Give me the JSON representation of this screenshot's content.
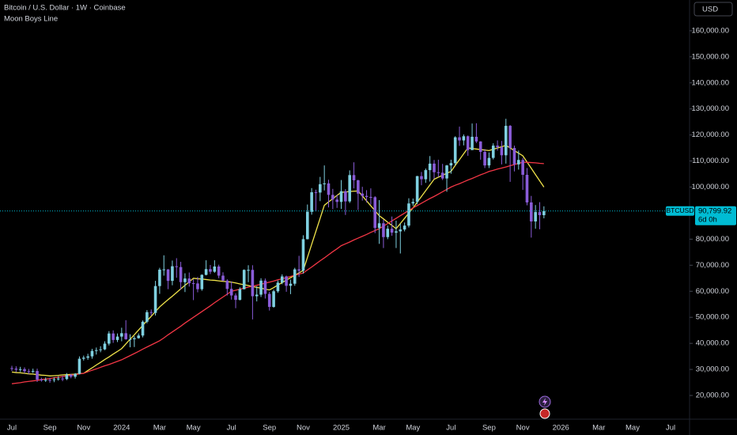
{
  "chart_data": {
    "type": "candlestick",
    "title": "Bitcoin / U.S. Dollar · 1W · Coinbase",
    "indicator": "Moon Boys Line",
    "currency": "USD",
    "categories": [
      "Jul",
      null,
      null,
      null,
      null,
      null,
      null,
      null,
      null,
      "Sep",
      null,
      null,
      null,
      null,
      null,
      null,
      null,
      "Nov",
      null,
      null,
      null,
      null,
      null,
      null,
      null,
      null,
      "2024",
      null,
      null,
      null,
      null,
      null,
      null,
      null,
      null,
      "Mar",
      null,
      null,
      null,
      null,
      null,
      null,
      null,
      "May",
      null,
      null,
      null,
      null,
      null,
      null,
      null,
      null,
      "Jul",
      null,
      null,
      null,
      null,
      null,
      null,
      null,
      null,
      "Sep",
      null,
      null,
      null,
      null,
      null,
      null,
      null,
      "Nov",
      null,
      null,
      null,
      null,
      null,
      null,
      null,
      null,
      "2025",
      null,
      null,
      null,
      null,
      null,
      null,
      null,
      null,
      "Mar",
      null,
      null,
      null,
      null,
      null,
      null,
      null,
      "May",
      null,
      null,
      null,
      null,
      null,
      null,
      null,
      null,
      "Jul",
      null,
      null,
      null,
      null,
      null,
      null,
      null,
      null,
      "Sep",
      null,
      null,
      null,
      null,
      null,
      null,
      null,
      "Nov",
      null,
      null,
      null,
      null,
      null,
      null,
      null,
      null,
      "2026",
      null,
      null,
      null,
      null,
      null,
      null,
      null,
      null,
      "Mar",
      null,
      null,
      null,
      null,
      null,
      null,
      null,
      "May",
      null,
      null,
      null,
      null,
      null,
      null,
      null,
      null,
      "Jul"
    ],
    "open": [
      30500,
      30300,
      29900,
      30100,
      29300,
      29100,
      29400,
      26100,
      26000,
      26000,
      25900,
      26200,
      26500,
      26300,
      27900,
      27200,
      28300,
      34100,
      34500,
      35000,
      37100,
      37400,
      37700,
      39900,
      43800,
      41300,
      42600,
      43900,
      41600,
      41600,
      42000,
      43000,
      48300,
      52000,
      51700,
      62000,
      68300,
      68400,
      64000,
      69600,
      69300,
      63500,
      64900,
      63100,
      63000,
      60800,
      66300,
      68500,
      67500,
      69500,
      66000,
      64100,
      60900,
      58400,
      56700,
      60800,
      68200,
      68200,
      58100,
      58700,
      64100,
      59000,
      54000,
      60000,
      63300,
      65700,
      62100,
      62900,
      68400,
      67900,
      80000,
      90500,
      98000,
      97900,
      101100,
      101400,
      97000,
      95200,
      94300,
      98400,
      94500,
      104600,
      102600,
      97500,
      96600,
      96200,
      96100,
      84300,
      86100,
      80800,
      84000,
      82500,
      83000,
      83700,
      85200,
      93700,
      94300,
      104200,
      103000,
      106500,
      109000,
      105700,
      105500,
      103300,
      108300,
      109200,
      119100,
      117900,
      119500,
      114200,
      119300,
      117500,
      113500,
      108300,
      111200,
      115900,
      115300,
      112200,
      123500,
      115000,
      108700,
      110400,
      104700,
      94100,
      86800,
      90400,
      89200,
      null,
      null,
      null,
      null,
      null,
      null,
      null,
      null,
      null,
      null,
      null,
      null,
      null,
      null,
      null,
      null,
      null,
      null,
      null,
      null,
      null,
      null,
      null,
      null,
      null,
      null,
      null,
      null,
      null,
      null
    ],
    "high": [
      31400,
      31200,
      31000,
      30800,
      30200,
      30300,
      30300,
      26800,
      26900,
      26800,
      27000,
      27400,
      27500,
      28600,
      28300,
      28600,
      35000,
      35300,
      36000,
      37900,
      38400,
      38900,
      40800,
      44700,
      45000,
      43800,
      46000,
      48900,
      43500,
      42800,
      43800,
      48800,
      52800,
      53000,
      64000,
      69000,
      73800,
      68500,
      71800,
      72700,
      71300,
      66900,
      67200,
      64700,
      65500,
      66500,
      71900,
      70100,
      71900,
      70200,
      67300,
      64600,
      63800,
      59200,
      61500,
      68400,
      70000,
      70000,
      61900,
      65000,
      64900,
      59800,
      60600,
      64100,
      66500,
      66000,
      64500,
      69000,
      73600,
      81500,
      93300,
      99600,
      99000,
      103900,
      108300,
      102800,
      99300,
      97000,
      102700,
      99200,
      106400,
      109500,
      102800,
      100100,
      98800,
      99500,
      96500,
      95000,
      87500,
      85200,
      88700,
      87100,
      86000,
      86400,
      95700,
      95600,
      104300,
      105800,
      107100,
      111900,
      110400,
      110500,
      108900,
      108500,
      110500,
      119500,
      123200,
      120200,
      119800,
      124400,
      124500,
      117600,
      114600,
      113300,
      116800,
      117900,
      117700,
      126200,
      123800,
      115900,
      114000,
      111200,
      107300,
      96600,
      93100,
      94200,
      92600,
      null,
      null,
      null,
      null,
      null,
      null,
      null,
      null,
      null,
      null,
      null,
      null,
      null,
      null,
      null,
      null,
      null,
      null,
      null,
      null,
      null,
      null,
      null,
      null,
      null,
      null,
      null,
      null,
      null,
      null
    ],
    "low": [
      29400,
      29000,
      29000,
      28500,
      28200,
      28600,
      25200,
      25300,
      25200,
      24900,
      25100,
      25700,
      25500,
      25900,
      26600,
      26500,
      28100,
      33400,
      33700,
      34100,
      35700,
      36600,
      37400,
      39200,
      40200,
      40500,
      40800,
      41400,
      38500,
      38600,
      41800,
      42300,
      47700,
      50600,
      50700,
      59000,
      66000,
      60800,
      62300,
      65200,
      60700,
      59700,
      61800,
      56600,
      59600,
      60200,
      66100,
      66600,
      67100,
      65000,
      63900,
      58400,
      56800,
      53500,
      56500,
      60700,
      63500,
      49200,
      56100,
      57800,
      57200,
      52600,
      53700,
      59400,
      62700,
      59800,
      58900,
      62100,
      65500,
      66800,
      79900,
      89400,
      90700,
      94600,
      98700,
      92200,
      91500,
      92000,
      91600,
      89300,
      93900,
      99500,
      91200,
      94800,
      94100,
      93300,
      82300,
      78200,
      76600,
      80000,
      81300,
      76600,
      74500,
      83000,
      84500,
      92800,
      93400,
      100700,
      101600,
      102100,
      103100,
      103800,
      102700,
      98200,
      105100,
      108300,
      115800,
      116000,
      112000,
      114200,
      116900,
      110500,
      107300,
      107300,
      110600,
      114000,
      108700,
      109000,
      102000,
      106000,
      106700,
      98900,
      93000,
      80600,
      84000,
      83800,
      88000,
      null,
      null,
      null,
      null,
      null,
      null,
      null,
      null,
      null,
      null,
      null,
      null,
      null,
      null,
      null,
      null,
      null,
      null,
      null,
      null,
      null,
      null,
      null,
      null,
      null,
      null,
      null,
      null,
      null,
      null
    ],
    "close": [
      30300,
      29900,
      30100,
      29300,
      29100,
      29400,
      26100,
      26000,
      26000,
      25900,
      26200,
      26500,
      26300,
      27900,
      27200,
      28300,
      34100,
      34500,
      35000,
      37100,
      37400,
      37700,
      39900,
      43800,
      41300,
      42600,
      43900,
      41600,
      41600,
      42000,
      43000,
      48300,
      52000,
      51700,
      62000,
      68300,
      68400,
      64000,
      69600,
      69300,
      63500,
      64900,
      63100,
      63000,
      60800,
      66300,
      68500,
      67500,
      69500,
      66000,
      64100,
      60900,
      58400,
      56700,
      60800,
      68200,
      68200,
      58100,
      58700,
      64100,
      59000,
      54000,
      60000,
      63300,
      65700,
      62100,
      62900,
      68400,
      67900,
      80000,
      90500,
      98000,
      97900,
      101100,
      101400,
      97000,
      95200,
      94300,
      98400,
      94500,
      104600,
      102600,
      97500,
      96600,
      96200,
      96100,
      84300,
      86100,
      80800,
      84000,
      82500,
      83000,
      83700,
      85200,
      93700,
      94300,
      104200,
      103000,
      106500,
      109000,
      105700,
      105500,
      103300,
      108300,
      109200,
      119100,
      117900,
      119500,
      114200,
      119300,
      117500,
      113500,
      108300,
      111200,
      115900,
      115300,
      112200,
      123500,
      115000,
      108700,
      110400,
      104700,
      94100,
      86800,
      90400,
      89200,
      90799.92,
      null,
      null,
      null,
      null,
      null,
      null,
      null,
      null,
      null,
      null,
      null,
      null,
      null,
      null,
      null,
      null,
      null,
      null,
      null,
      null,
      null,
      null,
      null,
      null,
      null,
      null,
      null,
      null,
      null,
      null
    ],
    "up_color": "#7fd0e0",
    "down_color": "#8a5cd8",
    "series": [
      {
        "color": "#f0e34a",
        "values": [
          29000,
          28800,
          28700,
          28500,
          28300,
          28200,
          28000,
          27800,
          27700,
          27500,
          27600,
          27700,
          27900,
          28000,
          28100,
          28200,
          28400,
          28500,
          29600,
          30600,
          31700,
          32700,
          33800,
          34800,
          35900,
          36900,
          38000,
          39800,
          41600,
          43300,
          45100,
          46900,
          48700,
          50400,
          52200,
          54000,
          55400,
          56800,
          58100,
          59500,
          60900,
          62300,
          63600,
          65000,
          64800,
          64700,
          64500,
          64300,
          64200,
          64000,
          63800,
          63700,
          63500,
          63200,
          62800,
          62500,
          62200,
          61800,
          61500,
          61200,
          60800,
          60500,
          61400,
          62400,
          63300,
          64300,
          65200,
          66100,
          67100,
          68000,
          73000,
          78000,
          83000,
          88000,
          93000,
          94300,
          95500,
          96800,
          98000,
          98100,
          98300,
          98400,
          98500,
          96600,
          94700,
          92800,
          90900,
          89000,
          87800,
          86500,
          85300,
          84000,
          86000,
          88000,
          90000,
          92000,
          94200,
          96400,
          98600,
          100800,
          103000,
          103800,
          104500,
          105300,
          106000,
          108300,
          110500,
          112800,
          115000,
          114800,
          114600,
          114400,
          114200,
          114000,
          114500,
          115000,
          115500,
          116000,
          115000,
          114000,
          113000,
          112000,
          109600,
          107200,
          104800,
          102400,
          100000,
          null,
          null,
          null,
          null,
          null,
          null,
          null,
          null,
          null,
          null,
          null,
          null,
          null,
          null,
          null,
          null,
          null,
          null,
          null,
          null,
          null,
          null,
          null,
          null,
          null,
          null,
          null,
          null,
          null,
          null
        ]
      },
      {
        "color": "#f23645",
        "values": [
          24500,
          24700,
          24900,
          25200,
          25400,
          25600,
          25800,
          26100,
          26300,
          26500,
          26800,
          27000,
          27300,
          27500,
          27800,
          28000,
          28300,
          28500,
          29100,
          29700,
          30200,
          30800,
          31400,
          31900,
          32500,
          33100,
          33700,
          34500,
          35300,
          36100,
          36900,
          37800,
          38600,
          39400,
          40200,
          41000,
          42100,
          43300,
          44400,
          45500,
          46600,
          47800,
          48900,
          50000,
          51100,
          52200,
          53300,
          54400,
          55600,
          56700,
          57800,
          58900,
          60000,
          60400,
          60800,
          61200,
          61600,
          61900,
          62300,
          62700,
          63100,
          63500,
          63900,
          64400,
          64800,
          65200,
          65700,
          66100,
          66600,
          67000,
          68200,
          69300,
          70500,
          71700,
          72800,
          74000,
          75200,
          76300,
          77500,
          78200,
          78900,
          79700,
          80400,
          81100,
          81800,
          82600,
          83300,
          84000,
          85000,
          86000,
          87000,
          88000,
          89000,
          90000,
          91000,
          92000,
          92900,
          93800,
          94700,
          95600,
          96400,
          97300,
          98200,
          99100,
          100000,
          100700,
          101300,
          102000,
          102700,
          103300,
          104000,
          104700,
          105300,
          106000,
          106400,
          106900,
          107300,
          107700,
          108200,
          108600,
          109100,
          109500,
          109500,
          109400,
          109300,
          109100,
          109000,
          null,
          null,
          null,
          null,
          null,
          null,
          null,
          null,
          null,
          null,
          null,
          null,
          null,
          null,
          null,
          null,
          null,
          null,
          null,
          null,
          null,
          null,
          null,
          null,
          null,
          null,
          null,
          null,
          null,
          null
        ]
      }
    ],
    "last_price": {
      "symbol": "BTCUSD",
      "value": 90799.92,
      "label": "90,799.92",
      "countdown": "6d 0h",
      "color": "#00bcd4"
    },
    "ylim": [
      10900,
      171800
    ],
    "yticks": [
      {
        "value": 20000,
        "label": "20,000.00"
      },
      {
        "value": 30000,
        "label": "30,000.00"
      },
      {
        "value": 40000,
        "label": "40,000.00"
      },
      {
        "value": 50000,
        "label": "50,000.00"
      },
      {
        "value": 60000,
        "label": "60,000.00"
      },
      {
        "value": 70000,
        "label": "70,000.00"
      },
      {
        "value": 80000,
        "label": "80,000.00"
      },
      {
        "value": 90000,
        "label": "90,000.00"
      },
      {
        "value": 100000,
        "label": "100,000.00"
      },
      {
        "value": 110000,
        "label": "110,000.00"
      },
      {
        "value": 120000,
        "label": "120,000.00"
      },
      {
        "value": 130000,
        "label": "130,000.00"
      },
      {
        "value": 140000,
        "label": "140,000.00"
      },
      {
        "value": 150000,
        "label": "150,000.00"
      },
      {
        "value": 160000,
        "label": "160,000.00"
      }
    ],
    "grid": false
  }
}
